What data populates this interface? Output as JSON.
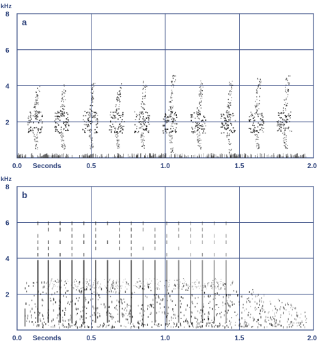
{
  "chart_data": [
    {
      "type": "spectrogram",
      "panel_label": "a",
      "y_unit": "kHz",
      "x_unit": "Seconds",
      "xlim": [
        0,
        2.0
      ],
      "ylim": [
        0,
        8
      ],
      "x_ticks": [
        "0.0",
        "0.5",
        "1.0",
        "1.5",
        "2.0"
      ],
      "y_ticks": [
        "2",
        "4",
        "6",
        "8"
      ],
      "grid": true,
      "syllables": [
        {
          "t": 0.12,
          "f_low": 0.5,
          "f_high": 4.0
        },
        {
          "t": 0.3,
          "f_low": 0.5,
          "f_high": 4.1
        },
        {
          "t": 0.49,
          "f_low": 0.5,
          "f_high": 4.2
        },
        {
          "t": 0.67,
          "f_low": 0.5,
          "f_high": 4.2
        },
        {
          "t": 0.84,
          "f_low": 0.5,
          "f_high": 4.3
        },
        {
          "t": 1.03,
          "f_low": 0.2,
          "f_high": 4.6
        },
        {
          "t": 1.22,
          "f_low": 0.5,
          "f_high": 4.4
        },
        {
          "t": 1.42,
          "f_low": 0.2,
          "f_high": 4.3
        },
        {
          "t": 1.61,
          "f_low": 0.5,
          "f_high": 4.5
        },
        {
          "t": 1.8,
          "f_low": 0.5,
          "f_high": 4.6
        }
      ]
    },
    {
      "type": "spectrogram",
      "panel_label": "b",
      "y_unit": "kHz",
      "x_unit": "Seconds",
      "xlim": [
        0,
        2.0
      ],
      "ylim": [
        0,
        8
      ],
      "x_ticks": [
        "0.0",
        "0.5",
        "1.0",
        "1.5",
        "2.0"
      ],
      "y_ticks": [
        "2",
        "4",
        "6",
        "8"
      ],
      "grid": true,
      "pulses": [
        0.14,
        0.21,
        0.29,
        0.37,
        0.45,
        0.53,
        0.61,
        0.69,
        0.77,
        0.85,
        0.93,
        1.01,
        1.09,
        1.17,
        1.25,
        1.33,
        1.41
      ],
      "pulse_f_high": 6.1,
      "noise_band_end": 1.95
    }
  ]
}
